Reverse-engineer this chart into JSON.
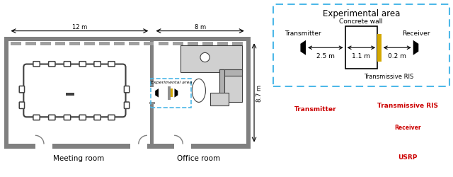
{
  "fig_width": 6.4,
  "fig_height": 2.51,
  "dpi": 100,
  "bg_color": "#ffffff",
  "title_meeting": "Meeting room",
  "title_office": "Office room",
  "dim_label_12": "12 m",
  "dim_label_8": "8 m",
  "dim_label_87": "8.7 m",
  "exp_area_title": "Experimental area",
  "exp_area_diagram_title": "Experimental area",
  "concrete_wall_label": "Concrete wall",
  "transmitter_label": "Transmitter",
  "receiver_label": "Receiver",
  "tris_label": "Transmissive RIS",
  "dist1": "2.5 m",
  "dist2": "1.1 m",
  "dist3": "0.2 m",
  "photo_transmitter_label": "Transmitter",
  "photo_tris_label": "Transmissive RIS",
  "photo_receiver_label": "Receiver",
  "photo_usrp_label": "USRP",
  "label_color_red": "#cc0000",
  "dashed_box_color": "#4db8e8",
  "wall_color": "#808080",
  "table_color": "#d0d0d0",
  "chair_color": "#404040",
  "ris_yellow": "#d4a800",
  "ceiling_color": "#a0a0a0",
  "door_frame_color": "#909090",
  "photo_bg_left": "#3a3a3a",
  "photo_bg_right": "#8090a0"
}
